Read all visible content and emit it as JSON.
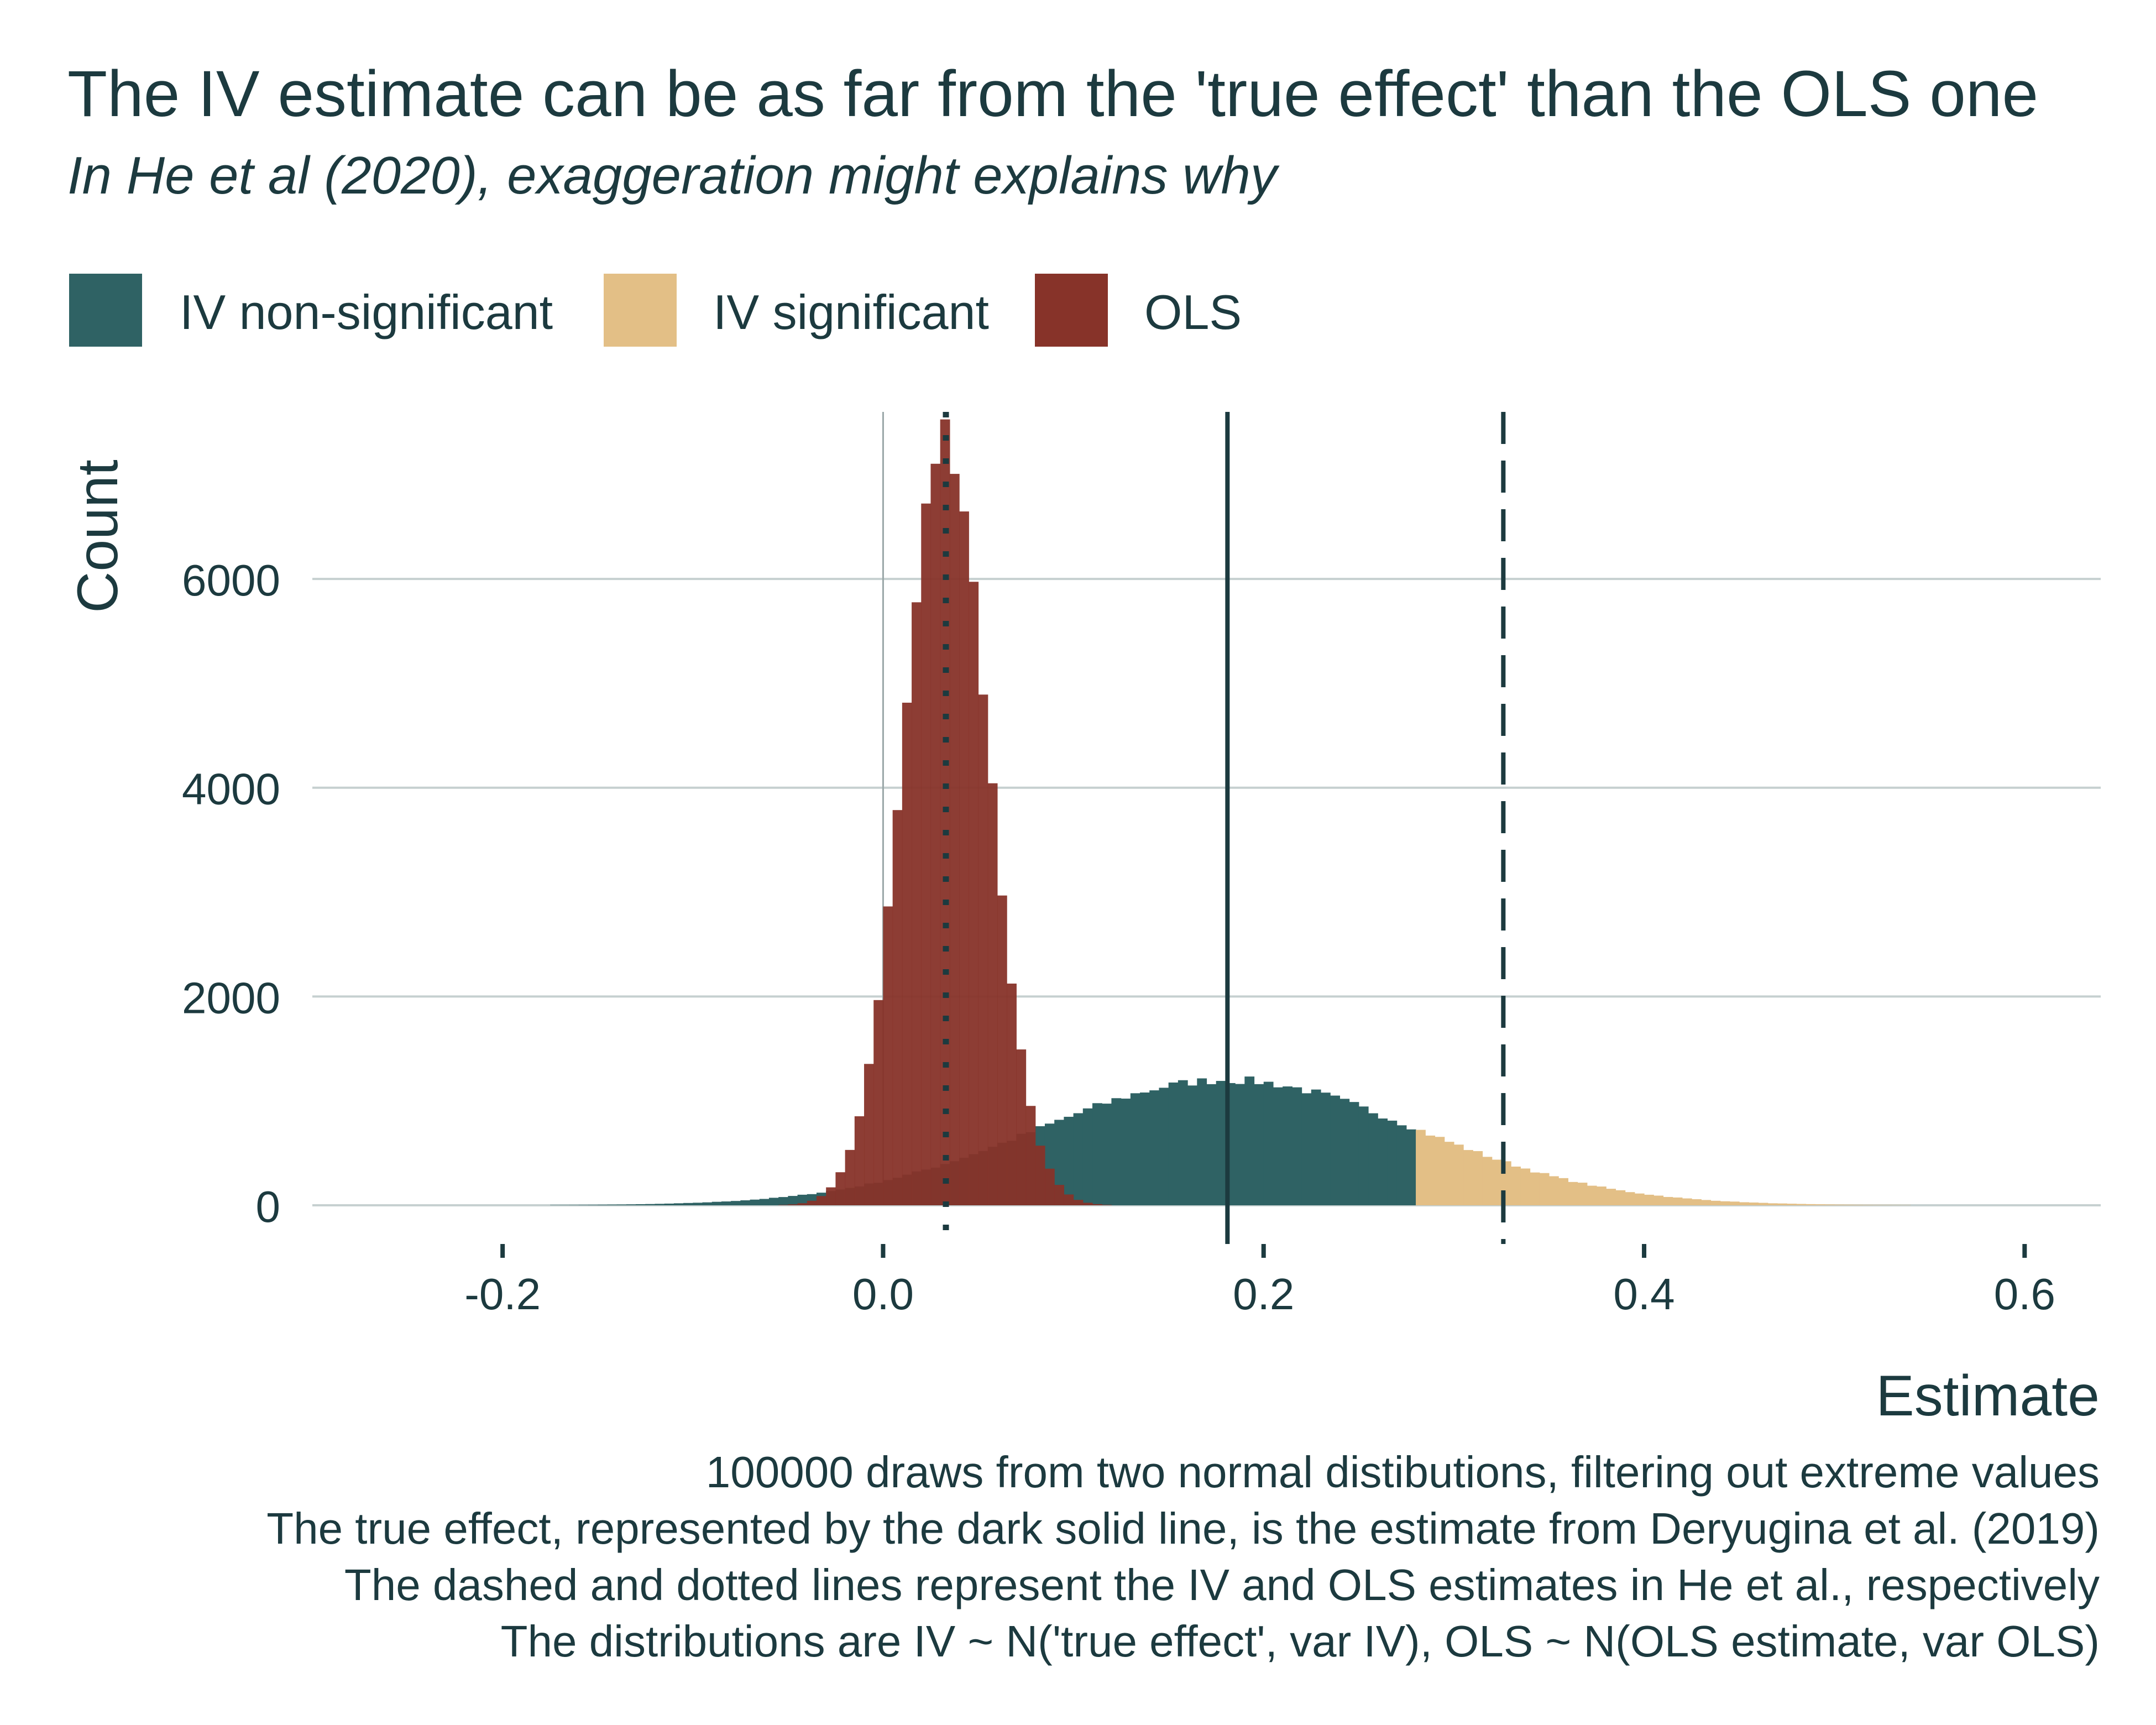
{
  "colors": {
    "text": "#1c3a3f",
    "grid": "#c6d0d0",
    "iv_nonsig": "#2f6264",
    "iv_sig": "#e3bf86",
    "ols": "#873329",
    "vline": "#1c3a3f"
  },
  "chart_data": {
    "type": "histogram",
    "title": "The IV estimate can be as far from the 'true effect' than the OLS one",
    "subtitle": "In He et al (2020), exaggeration might explains why",
    "xlabel": "Estimate",
    "ylabel": "Count",
    "xlim": [
      -0.3,
      0.64
    ],
    "ylim": [
      0,
      7600
    ],
    "x_ticks": [
      -0.2,
      0.0,
      0.2,
      0.4,
      0.6
    ],
    "x_tick_labels": [
      "-0.2",
      "0.0",
      "0.2",
      "0.4",
      "0.6"
    ],
    "y_ticks": [
      0,
      2000,
      4000,
      6000
    ],
    "y_tick_labels": [
      "0",
      "2000",
      "4000",
      "6000"
    ],
    "grid": "horizontal",
    "legend_position": "top-left",
    "bin_width": 0.005,
    "reference_lines": [
      {
        "x": 0.181,
        "style": "solid",
        "description": "true effect (Deryugina et al. 2019)"
      },
      {
        "x": 0.326,
        "style": "dashed",
        "description": "IV estimate in He et al."
      },
      {
        "x": 0.033,
        "style": "dotted",
        "description": "OLS estimate in He et al."
      }
    ],
    "series": [
      {
        "name": "IV non-significant",
        "color_key": "iv_nonsig",
        "center": 0.181,
        "sd": 0.1,
        "peak": 1200,
        "range": [
          -0.25,
          0.28
        ]
      },
      {
        "name": "IV significant",
        "color_key": "iv_sig",
        "center": 0.181,
        "sd": 0.1,
        "peak": 1200,
        "range": [
          0.28,
          0.6
        ]
      },
      {
        "name": "OLS",
        "color_key": "ols",
        "center": 0.033,
        "sd": 0.022,
        "peak": 7400,
        "range": [
          -0.06,
          0.12
        ]
      }
    ],
    "caption": [
      "100000 draws from two normal distibutions, filtering out extreme values",
      "The true effect, represented by the dark solid line, is the estimate from Deryugina et al. (2019)",
      "The dashed and dotted lines represent the IV and OLS estimates in He et al., respectively",
      "The distributions are IV ~ N('true effect', var IV), OLS ~ N(OLS estimate, var OLS)"
    ]
  }
}
